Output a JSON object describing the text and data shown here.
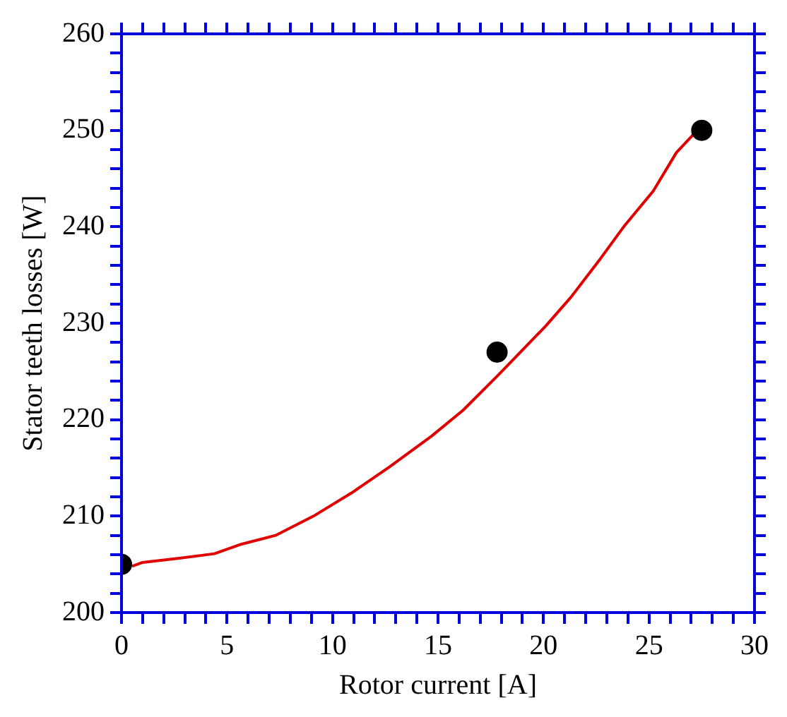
{
  "chart_data": {
    "type": "scatter",
    "xlabel": "Rotor current [A]",
    "ylabel": "Stator teeth losses [W]",
    "xlim": [
      0,
      30
    ],
    "xticks": [
      0,
      {
        "value": 1,
        "label": null
      },
      {
        "value": 2,
        "label": null
      },
      {
        "value": 3,
        "label": null
      },
      {
        "value": 4,
        "label": null
      },
      5,
      {
        "value": 6,
        "label": null
      },
      {
        "value": 7,
        "label": null
      },
      {
        "value": 8,
        "label": null
      },
      {
        "value": 9,
        "label": null
      },
      10,
      {
        "value": 11,
        "label": null
      },
      {
        "value": 12,
        "label": null
      },
      {
        "value": 13,
        "label": null
      },
      {
        "value": 14,
        "label": null
      },
      15,
      {
        "value": 16,
        "label": null
      },
      {
        "value": 17,
        "label": null
      },
      {
        "value": 18,
        "label": null
      },
      {
        "value": 19,
        "label": null
      },
      20,
      {
        "value": 21,
        "label": null
      },
      {
        "value": 22,
        "label": null
      },
      {
        "value": 23,
        "label": null
      },
      {
        "value": 24,
        "label": null
      },
      25,
      {
        "value": 26,
        "label": null
      },
      {
        "value": 27,
        "label": null
      },
      {
        "value": 28,
        "label": null
      },
      {
        "value": 29,
        "label": null
      },
      30
    ],
    "ylim": [
      200,
      260
    ],
    "yticks": [
      200,
      {
        "value": 202,
        "label": null
      },
      {
        "value": 204,
        "label": null
      },
      {
        "value": 206,
        "label": null
      },
      {
        "value": 208,
        "label": null
      },
      210,
      {
        "value": 212,
        "label": null
      },
      {
        "value": 214,
        "label": null
      },
      {
        "value": 216,
        "label": null
      },
      {
        "value": 218,
        "label": null
      },
      220,
      {
        "value": 222,
        "label": null
      },
      {
        "value": 224,
        "label": null
      },
      {
        "value": 226,
        "label": null
      },
      {
        "value": 228,
        "label": null
      },
      230,
      {
        "value": 232,
        "label": null
      },
      {
        "value": 234,
        "label": null
      },
      {
        "value": 236,
        "label": null
      },
      {
        "value": 238,
        "label": null
      },
      240,
      {
        "value": 242,
        "label": null
      },
      {
        "value": 244,
        "label": null
      },
      {
        "value": 246,
        "label": null
      },
      {
        "value": 248,
        "label": null
      },
      250,
      {
        "value": 252,
        "label": null
      },
      {
        "value": 254,
        "label": null
      },
      {
        "value": 256,
        "label": null
      },
      {
        "value": 258,
        "label": null
      },
      260
    ],
    "grid": false,
    "legend": false,
    "marker": "circle",
    "series": [
      {
        "type": "line",
        "color": "#e00000",
        "marker": "none",
        "x": [
          0.5,
          1,
          2.6,
          4.4,
          5.7,
          7.3,
          9.1,
          10.9,
          12.7,
          14.7,
          16.2,
          17.8,
          20.1,
          21.3,
          22.7,
          23.8,
          25.2,
          26.3,
          27.5
        ],
        "values": [
          204.8,
          205.2,
          205.6,
          206.1,
          207.1,
          208,
          210,
          212.4,
          215.1,
          218.3,
          221,
          224.5,
          229.7,
          232.7,
          236.7,
          240,
          243.7,
          247.7,
          250.5
        ]
      },
      {
        "color": "#000000",
        "x": [
          0,
          17.8,
          27.5
        ],
        "values": [
          205,
          227,
          250
        ]
      }
    ]
  }
}
